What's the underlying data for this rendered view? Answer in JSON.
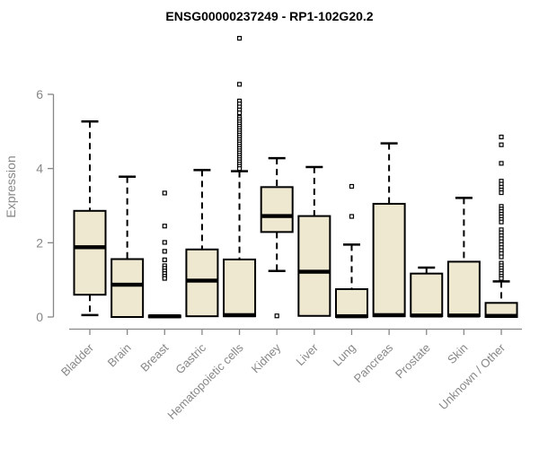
{
  "title": "ENSG00000237249 - RP1-102G20.2",
  "style": {
    "background": "#ffffff",
    "box_fill": "#EEE8D0",
    "box_border": "#000000",
    "axis_color": "#878787",
    "label_color": "#878787",
    "title_color": "#000000"
  },
  "chart_data": {
    "type": "boxplot",
    "title": "ENSG00000237249 - RP1-102G20.2",
    "xlabel": "",
    "ylabel": "Expression",
    "ylim": [
      0,
      6
    ],
    "yticks": [
      0,
      2,
      4,
      6
    ],
    "grid": false,
    "legend": false,
    "categories": [
      "Bladder",
      "Brain",
      "Breast",
      "Gastric",
      "Hematopoietic cells",
      "Kidney",
      "Liver",
      "Lung",
      "Pancreas",
      "Prostate",
      "Skin",
      "Unknown / Other"
    ],
    "series": [
      {
        "name": "Bladder",
        "whisker_low": 0.05,
        "q1": 0.6,
        "median": 1.88,
        "q3": 2.86,
        "whisker_high": 5.27,
        "outliers": []
      },
      {
        "name": "Brain",
        "whisker_low": 0.0,
        "q1": 0.0,
        "median": 0.87,
        "q3": 1.56,
        "whisker_high": 3.78,
        "outliers": []
      },
      {
        "name": "Breast",
        "whisker_low": 0.0,
        "q1": 0.0,
        "median": 0.02,
        "q3": 0.04,
        "whisker_high": 0.05,
        "outliers": [
          3.34,
          2.45,
          2.01,
          1.77,
          1.54,
          1.38,
          1.31,
          1.24,
          1.17,
          1.1,
          1.04
        ]
      },
      {
        "name": "Gastric",
        "whisker_low": 0.0,
        "q1": 0.02,
        "median": 0.98,
        "q3": 1.82,
        "whisker_high": 3.96,
        "outliers": []
      },
      {
        "name": "Hematopoietic cells",
        "whisker_low": 0.0,
        "q1": 0.02,
        "median": 0.05,
        "q3": 1.55,
        "whisker_high": 3.93,
        "outliers": [
          7.51,
          6.27,
          5.82,
          5.74,
          5.66,
          5.58,
          5.5,
          5.38,
          5.32,
          5.26,
          5.2,
          5.14,
          5.08,
          5.02,
          4.96,
          4.9,
          4.84,
          4.78,
          4.72,
          4.66,
          4.6,
          4.54,
          4.48,
          4.42,
          4.36,
          4.3,
          4.24,
          4.18,
          4.12,
          4.06,
          4.0
        ]
      },
      {
        "name": "Kidney",
        "whisker_low": 1.24,
        "q1": 2.29,
        "median": 2.72,
        "q3": 3.5,
        "whisker_high": 4.28,
        "outliers": [
          0.03
        ]
      },
      {
        "name": "Liver",
        "whisker_low": 0.0,
        "q1": 0.03,
        "median": 1.22,
        "q3": 2.72,
        "whisker_high": 4.04,
        "outliers": []
      },
      {
        "name": "Lung",
        "whisker_low": 0.0,
        "q1": 0.0,
        "median": 0.02,
        "q3": 0.75,
        "whisker_high": 1.95,
        "outliers": [
          3.52,
          2.71
        ]
      },
      {
        "name": "Pancreas",
        "whisker_low": 0.0,
        "q1": 0.02,
        "median": 0.05,
        "q3": 3.05,
        "whisker_high": 4.68,
        "outliers": []
      },
      {
        "name": "Prostate",
        "whisker_low": 0.0,
        "q1": 0.02,
        "median": 0.04,
        "q3": 1.17,
        "whisker_high": 1.33,
        "outliers": []
      },
      {
        "name": "Skin",
        "whisker_low": 0.0,
        "q1": 0.02,
        "median": 0.04,
        "q3": 1.49,
        "whisker_high": 3.21,
        "outliers": []
      },
      {
        "name": "Unknown / Other",
        "whisker_low": 0.0,
        "q1": 0.0,
        "median": 0.03,
        "q3": 0.38,
        "whisker_high": 0.96,
        "outliers": [
          4.85,
          4.64,
          4.14,
          3.66,
          3.58,
          3.5,
          3.42,
          3.35,
          2.98,
          2.91,
          2.84,
          2.77,
          2.7,
          2.63,
          2.56,
          2.35,
          2.27,
          2.19,
          2.11,
          2.03,
          1.95,
          1.87,
          1.79,
          1.71,
          1.62,
          1.45,
          1.38,
          1.31,
          1.24,
          1.17,
          1.1,
          1.04
        ]
      }
    ]
  }
}
